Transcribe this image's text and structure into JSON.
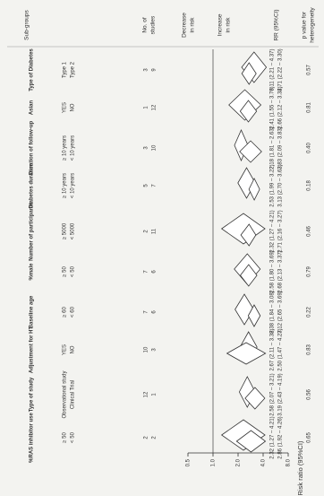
{
  "chart_data": {
    "type": "forest",
    "headers": [
      [
        "Sub-groups"
      ],
      [
        "No. of",
        "studies"
      ],
      [
        "Decrease",
        "in risk"
      ],
      [
        "Increase",
        "in risk"
      ],
      [
        "RR (95%CI)"
      ],
      [
        "p value for",
        "heterogeneity"
      ]
    ],
    "rows": [
      {
        "group": "Type of Diabetes",
        "p": "0.57",
        "subgroups": [
          {
            "name": "Type 1",
            "studies": 3,
            "rr": 3.11,
            "ci": [
              2.21,
              4.37
            ],
            "label": "3.11 (2.21 – 4.37)"
          },
          {
            "name": "Type 2",
            "studies": 9,
            "rr": 2.71,
            "ci": [
              2.22,
              3.3
            ],
            "label": "2.71 (2.22 – 3.30)"
          }
        ]
      },
      {
        "group": "Asian",
        "p": "0.81",
        "subgroups": [
          {
            "name": "YES",
            "studies": 1,
            "rr": 2.41,
            "ci": [
              1.55,
              3.76
            ],
            "label": "2.41 (1.55 – 3.76)"
          },
          {
            "name": "NO",
            "studies": 12,
            "rr": 2.66,
            "ci": [
              2.12,
              3.34
            ],
            "label": "2.66 (2.12 – 3.34)"
          }
        ]
      },
      {
        "group": "Duration of follow-up",
        "p": "0.40",
        "subgroups": [
          {
            "name": "≥ 10 years",
            "studies": 3,
            "rr": 2.18,
            "ci": [
              1.81,
              2.63
            ],
            "label": "2.18 (1.81 – 2.63)"
          },
          {
            "name": "< 10 years",
            "studies": 10,
            "rr": 2.83,
            "ci": [
              2.09,
              3.83
            ],
            "label": "2.83 (2.09 – 3.83)"
          }
        ]
      },
      {
        "group": "Diabetes duration",
        "p": "0.18",
        "subgroups": [
          {
            "name": "≥ 10 years",
            "studies": 5,
            "rr": 2.53,
            "ci": [
              1.99,
              3.22
            ],
            "label": "2.53 (1.99 – 3.22)"
          },
          {
            "name": "< 10 years",
            "studies": 7,
            "rr": 3.13,
            "ci": [
              2.7,
              3.63
            ],
            "label": "3.13 (2.70 – 3.63)"
          }
        ]
      },
      {
        "group": "Number of participants",
        "p": "0.46",
        "subgroups": [
          {
            "name": "≥ 5000",
            "studies": 2,
            "rr": 2.32,
            "ci": [
              1.27,
              4.21
            ],
            "label": "2.32 (1.27 – 4.21)"
          },
          {
            "name": "< 5000",
            "studies": 11,
            "rr": 2.71,
            "ci": [
              2.16,
              3.27
            ],
            "label": "2.71 (2.16 – 3.27)"
          }
        ]
      },
      {
        "group": "%male",
        "p": "0.79",
        "subgroups": [
          {
            "name": "≥ 50",
            "studies": 7,
            "rr": 2.58,
            "ci": [
              1.8,
              3.69
            ],
            "label": "2.58 (1.80 – 3.69)"
          },
          {
            "name": "< 50",
            "studies": 6,
            "rr": 2.68,
            "ci": [
              2.13,
              3.37
            ],
            "label": "2.68 (2.13 – 3.37)"
          }
        ]
      },
      {
        "group": "Baseline age",
        "p": "0.22",
        "subgroups": [
          {
            "name": "≥ 60",
            "studies": 7,
            "rr": 2.38,
            "ci": [
              1.84,
              3.08
            ],
            "label": "2.38 (1.84 – 3.08)"
          },
          {
            "name": "< 60",
            "studies": 6,
            "rr": 3.12,
            "ci": [
              2.65,
              3.69
            ],
            "label": "3.12 (2.65 – 3.69)"
          }
        ]
      },
      {
        "group": "Adjustment for HT",
        "p": "0.83",
        "subgroups": [
          {
            "name": "YES",
            "studies": 10,
            "rr": 2.67,
            "ci": [
              2.11,
              3.38
            ],
            "label": "2.67 (2.11 – 3.38)"
          },
          {
            "name": "NO",
            "studies": 3,
            "rr": 2.5,
            "ci": [
              1.47,
              4.27
            ],
            "label": "2.50 (1.47 – 4.27)"
          }
        ]
      },
      {
        "group": "Type of study",
        "p": "0.56",
        "subgroups": [
          {
            "name": "Observational study",
            "studies": 12,
            "rr": 2.58,
            "ci": [
              2.07,
              3.21
            ],
            "label": "2.58 (2.07 – 3.21)"
          },
          {
            "name": "Clinical Trial",
            "studies": 1,
            "rr": 3.19,
            "ci": [
              2.43,
              4.19
            ],
            "label": "3.19 (2.43 – 4.19)"
          }
        ]
      },
      {
        "group": "%RAS inhibitor use",
        "p": "0.65",
        "subgroups": [
          {
            "name": "≥ 50",
            "studies": 2,
            "rr": 2.32,
            "ci": [
              1.27,
              4.21
            ],
            "label": "2.32 (1.27 – 4.21)"
          },
          {
            "name": "< 50",
            "studies": 2,
            "rr": 2.86,
            "ci": [
              1.92,
              4.26
            ],
            "label": "2.86 (1.92 – 4.26)"
          }
        ]
      }
    ],
    "x_label": "Risk ratio (95%CI)",
    "xscale": "log",
    "xlim": [
      0.5,
      8
    ],
    "xticks": [
      0.5,
      {
        "value": 1,
        "label": "1.0"
      },
      {
        "value": 2,
        "label": "2.0"
      },
      {
        "value": 4,
        "label": "4.0"
      },
      {
        "value": 8,
        "label": "8.0"
      }
    ],
    "reference_line": 1,
    "color": "#ffffff"
  }
}
